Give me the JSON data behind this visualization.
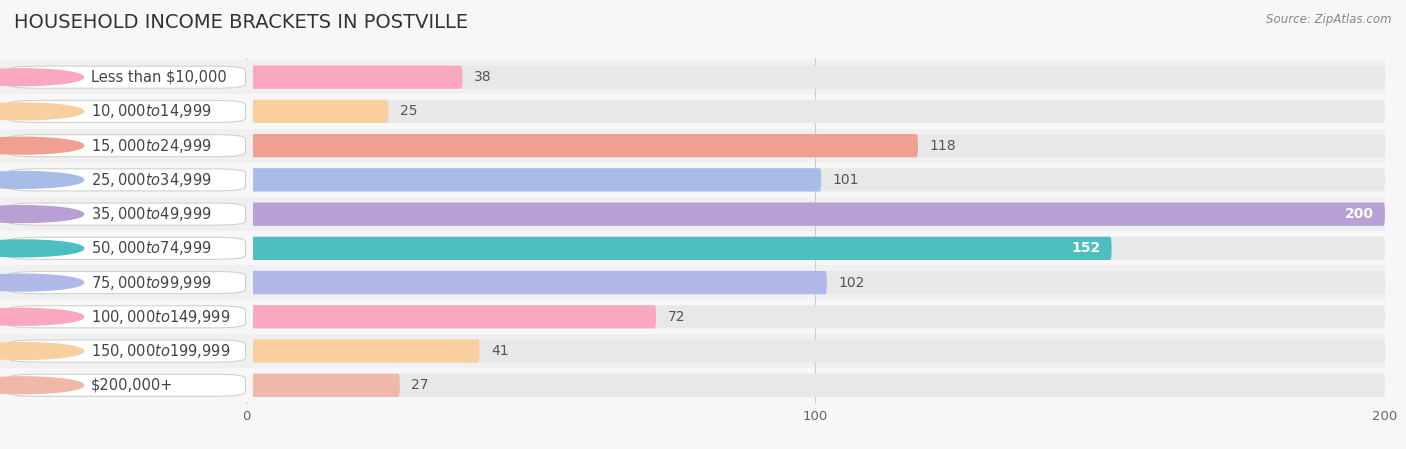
{
  "title": "HOUSEHOLD INCOME BRACKETS IN POSTVILLE",
  "source": "Source: ZipAtlas.com",
  "categories": [
    "Less than $10,000",
    "$10,000 to $14,999",
    "$15,000 to $24,999",
    "$25,000 to $34,999",
    "$35,000 to $49,999",
    "$50,000 to $74,999",
    "$75,000 to $99,999",
    "$100,000 to $149,999",
    "$150,000 to $199,999",
    "$200,000+"
  ],
  "values": [
    38,
    25,
    118,
    101,
    200,
    152,
    102,
    72,
    41,
    27
  ],
  "bar_colors": [
    "#f9a8bf",
    "#f9cfa0",
    "#f0a090",
    "#a8bce8",
    "#b89fd4",
    "#4dbfc0",
    "#b0b8ea",
    "#f9a8c0",
    "#f9cfa0",
    "#f0b8a8"
  ],
  "value_inside": [
    false,
    false,
    false,
    false,
    true,
    true,
    false,
    false,
    false,
    false
  ],
  "xlim": [
    0,
    200
  ],
  "xticks": [
    0,
    100,
    200
  ],
  "background_color": "#f7f7f7",
  "bar_bg_color": "#e8e8e8",
  "row_bg_colors": [
    "#f0f0f0",
    "#f7f7f7"
  ],
  "title_fontsize": 14,
  "label_fontsize": 10.5,
  "value_fontsize": 10
}
